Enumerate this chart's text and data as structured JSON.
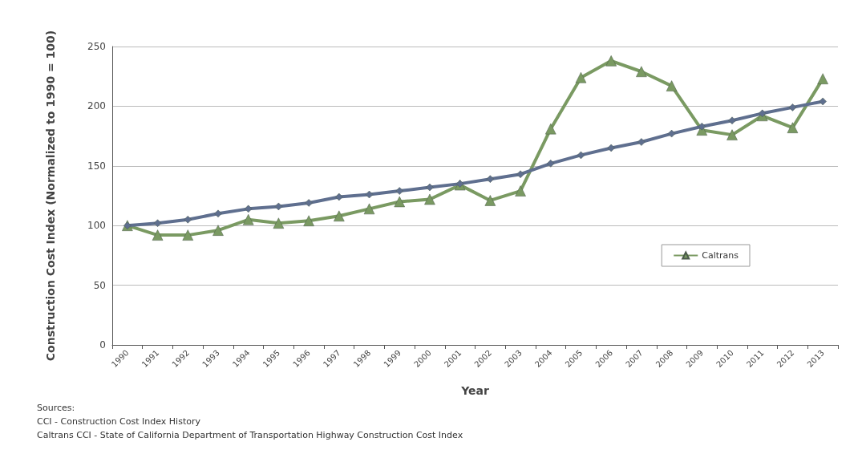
{
  "chart_data": {
    "type": "line",
    "xlabel": "Year",
    "ylabel": "Construction Cost Index (Normalized to 1990 = 100)",
    "categories": [
      "1990",
      "1991",
      "1992",
      "1993",
      "1994",
      "1995",
      "1996",
      "1997",
      "1998",
      "1999",
      "2000",
      "2001",
      "2002",
      "2003",
      "2004",
      "2005",
      "2006",
      "2007",
      "2008",
      "2009",
      "2010",
      "2011",
      "2012",
      "2013"
    ],
    "series": [
      {
        "color": "#5f6f8f",
        "marker": "diamond",
        "values": [
          100,
          102,
          105,
          110,
          114,
          116,
          119,
          124,
          126,
          129,
          132,
          135,
          139,
          143,
          152,
          159,
          165,
          170,
          177,
          183,
          188,
          194,
          199,
          204
        ]
      },
      {
        "name": "Caltrans",
        "color": "#7a9a62",
        "marker": "triangle",
        "values": [
          100,
          92,
          92,
          96,
          105,
          102,
          104,
          108,
          114,
          120,
          122,
          134,
          121,
          129,
          181,
          224,
          238,
          229,
          217,
          180,
          176,
          192,
          182,
          223
        ]
      }
    ],
    "ylim": [
      0,
      250
    ],
    "yticks": [
      0,
      50,
      100,
      150,
      200,
      250
    ],
    "grid": "y",
    "legend": "right",
    "annotations": [
      "Sources:",
      "CCI - Construction Cost Index History",
      "Caltrans CCI - State of California Department of Transportation Highway Construction Cost Index"
    ]
  }
}
